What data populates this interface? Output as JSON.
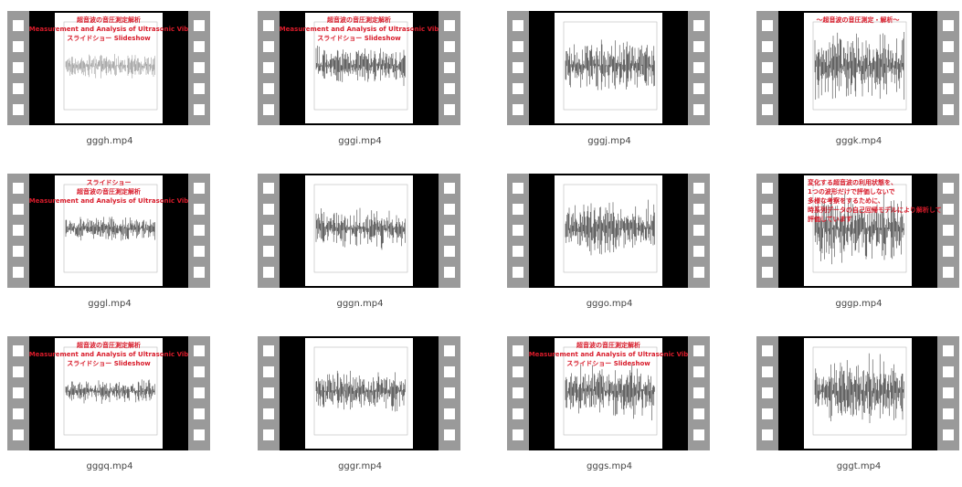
{
  "files": [
    {
      "name": "gggh.mp4",
      "overlay": [
        "超音波の音圧測定解析",
        "Measurement and Analysis of Ultrasonic Vib",
        "スライドショー Slideshow"
      ]
    },
    {
      "name": "gggi.mp4",
      "overlay": [
        "超音波の音圧測定解析",
        "Measurement and Analysis of Ultrasonic Vib",
        "スライドショー Slideshow"
      ]
    },
    {
      "name": "gggj.mp4"
    },
    {
      "name": "gggk.mp4",
      "overlay": [
        "～超音波の音圧測定・解析～"
      ]
    },
    {
      "name": "gggl.mp4",
      "overlay": [
        "スライドショー",
        "超音波の音圧測定解析",
        "Measurement and Analysis of Ultrasonic Vib"
      ]
    },
    {
      "name": "gggn.mp4"
    },
    {
      "name": "gggo.mp4"
    },
    {
      "name": "gggp.mp4",
      "overlay": [
        "変化する超音波の利用状態を、",
        "1つの波形だけで評価しないで",
        "多様な考察をするために、",
        "時系列データの自己回帰モデルにより解析して",
        "評価しています"
      ]
    },
    {
      "name": "gggq.mp4",
      "overlay": [
        "超音波の音圧測定解析",
        "Measurement and Analysis of Ultrasonic Vib",
        "スライドショー Slideshow"
      ]
    },
    {
      "name": "gggr.mp4"
    },
    {
      "name": "gggs.mp4",
      "overlay": [
        "超音波の音圧測定解析",
        "Measurement and Analysis of Ultrasonic Vib",
        "スライドショー Slideshow"
      ]
    },
    {
      "name": "gggt.mp4"
    }
  ]
}
